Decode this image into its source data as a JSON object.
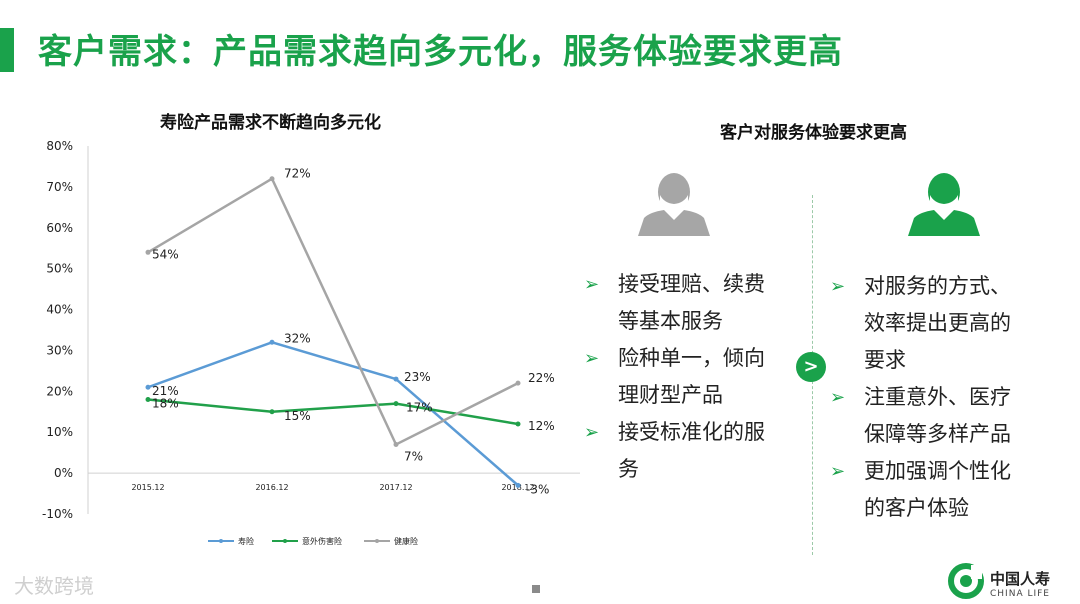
{
  "page": {
    "title": "客户需求：产品需求趋向多元化，服务体验要求更高",
    "accent_color": "#1aa24b"
  },
  "left_panel": {
    "chart_title": "寿险产品需求不断趋向多元化"
  },
  "chart_data": {
    "type": "line",
    "title": "寿险产品需求不断趋向多元化",
    "categories": [
      "2015.12",
      "2016.12",
      "2017.12",
      "2018.12"
    ],
    "ylim": [
      -10,
      80
    ],
    "yticks": [
      "-10%",
      "0%",
      "10%",
      "20%",
      "30%",
      "40%",
      "50%",
      "60%",
      "70%",
      "80%"
    ],
    "legend_position": "bottom",
    "grid": false,
    "series": [
      {
        "name": "寿险",
        "color": "#5b9bd5",
        "values": [
          21,
          32,
          23,
          -3
        ],
        "labels": [
          "21%",
          "32%",
          "23%",
          "-3%"
        ]
      },
      {
        "name": "意外伤害险",
        "color": "#21a04a",
        "values": [
          18,
          15,
          17,
          12
        ],
        "labels": [
          "18%",
          "15%",
          "17%",
          "12%"
        ]
      },
      {
        "name": "健康险",
        "color": "#a5a5a5",
        "values": [
          54,
          72,
          7,
          22
        ],
        "labels": [
          "54%",
          "72%",
          "7%",
          "22%"
        ]
      }
    ]
  },
  "right_panel": {
    "title": "客户对服务体验要求更高",
    "before_icon": "person-gray-icon",
    "after_icon": "person-green-icon",
    "transition_icon": "arrow-right-icon",
    "transition_symbol": ">",
    "bullet_symbol": "➢",
    "before_items": [
      "接受理赔、续费等基本服务",
      "险种单一，倾向理财型产品",
      "接受标准化的服务"
    ],
    "after_items": [
      "对服务的方式、效率提出更高的要求",
      "注重意外、医疗保障等多样产品",
      "更加强调个性化的客户体验"
    ]
  },
  "footer": {
    "watermark": "大数跨境",
    "logo_cn": "中国人寿",
    "logo_en": "CHINA LIFE",
    "logo_icon": "china-life-logo-icon"
  }
}
